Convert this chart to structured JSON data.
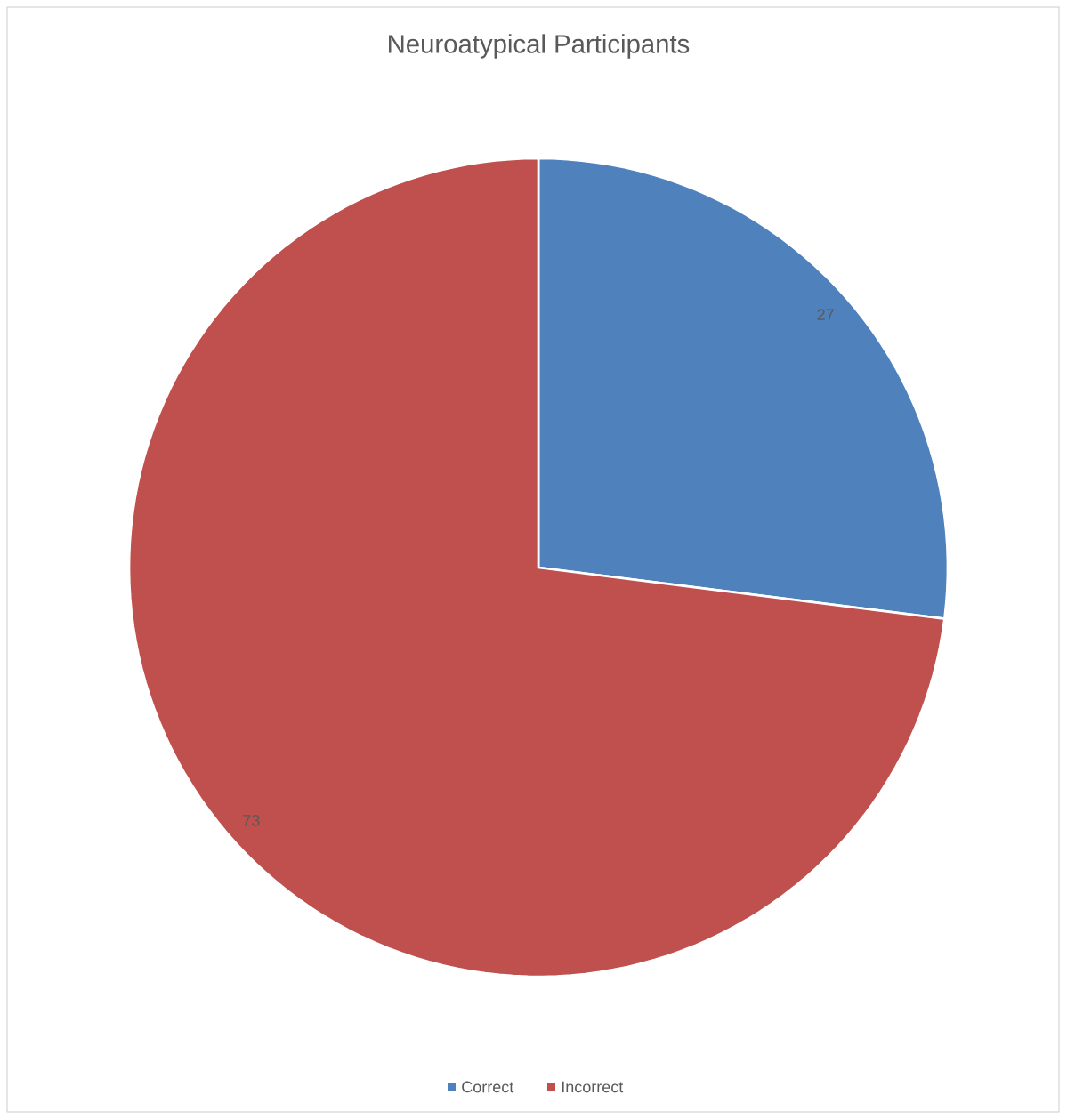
{
  "chart_data": {
    "type": "pie",
    "title": "Neuroatypical Participants",
    "categories": [
      "Correct",
      "Incorrect"
    ],
    "values": [
      27,
      73
    ],
    "colors": [
      "#4f81bd",
      "#c0504d"
    ],
    "data_labels": true,
    "legend": "bottom"
  }
}
